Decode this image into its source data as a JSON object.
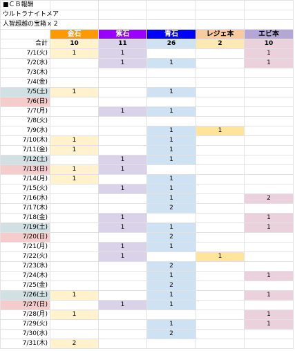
{
  "header": {
    "lines": [
      "■ＣＢ報酬",
      "ウルトラナイトメア",
      "人智超越の宝箱ｘ２"
    ]
  },
  "table": {
    "columns": [
      "金石",
      "紫石",
      "青石",
      "レジェ本",
      "エビ本"
    ],
    "total_label": "合計",
    "totals": [
      10,
      11,
      26,
      2,
      10
    ],
    "rows": [
      {
        "date": "7/1(火)",
        "values": [
          1,
          1,
          null,
          null,
          1
        ]
      },
      {
        "date": "7/2(水)",
        "values": [
          null,
          1,
          1,
          null,
          1
        ]
      },
      {
        "date": "7/3(木)",
        "values": [
          null,
          null,
          null,
          null,
          null
        ]
      },
      {
        "date": "7/4(金)",
        "values": [
          null,
          null,
          null,
          null,
          null
        ]
      },
      {
        "date": "7/5(土)",
        "values": [
          1,
          null,
          1,
          null,
          null
        ]
      },
      {
        "date": "7/6(日)",
        "values": [
          null,
          null,
          null,
          null,
          null
        ]
      },
      {
        "date": "7/7(月)",
        "values": [
          null,
          1,
          1,
          null,
          null
        ]
      },
      {
        "date": "7/8(火)",
        "values": [
          null,
          null,
          null,
          null,
          null
        ]
      },
      {
        "date": "7/9(水)",
        "values": [
          null,
          null,
          1,
          1,
          null
        ]
      },
      {
        "date": "7/10(木)",
        "values": [
          1,
          null,
          1,
          null,
          null
        ]
      },
      {
        "date": "7/11(金)",
        "values": [
          1,
          null,
          1,
          null,
          null
        ]
      },
      {
        "date": "7/12(土)",
        "values": [
          null,
          1,
          1,
          null,
          null
        ]
      },
      {
        "date": "7/13(日)",
        "values": [
          1,
          1,
          null,
          null,
          null
        ]
      },
      {
        "date": "7/14(月)",
        "values": [
          1,
          null,
          1,
          null,
          null
        ]
      },
      {
        "date": "7/15(火)",
        "values": [
          null,
          1,
          1,
          null,
          null
        ]
      },
      {
        "date": "7/16(水)",
        "values": [
          null,
          null,
          1,
          null,
          2
        ]
      },
      {
        "date": "7/17(木)",
        "values": [
          null,
          null,
          2,
          null,
          null
        ]
      },
      {
        "date": "7/18(金)",
        "values": [
          null,
          1,
          null,
          null,
          1
        ]
      },
      {
        "date": "7/19(土)",
        "values": [
          null,
          1,
          1,
          null,
          1
        ]
      },
      {
        "date": "7/20(日)",
        "values": [
          null,
          null,
          2,
          null,
          null
        ]
      },
      {
        "date": "7/21(月)",
        "values": [
          null,
          1,
          1,
          null,
          null
        ]
      },
      {
        "date": "7/22(火)",
        "values": [
          null,
          1,
          null,
          1,
          null
        ]
      },
      {
        "date": "7/23(水)",
        "values": [
          null,
          null,
          2,
          null,
          null
        ]
      },
      {
        "date": "7/24(木)",
        "values": [
          null,
          null,
          1,
          null,
          1
        ]
      },
      {
        "date": "7/25(金)",
        "values": [
          null,
          null,
          2,
          null,
          null
        ]
      },
      {
        "date": "7/26(土)",
        "values": [
          1,
          null,
          1,
          null,
          1
        ]
      },
      {
        "date": "7/27(日)",
        "values": [
          null,
          1,
          1,
          null,
          null
        ]
      },
      {
        "date": "7/28(月)",
        "values": [
          1,
          null,
          null,
          null,
          1
        ]
      },
      {
        "date": "7/29(火)",
        "values": [
          null,
          null,
          1,
          null,
          1
        ]
      },
      {
        "date": "7/30(水)",
        "values": [
          null,
          null,
          2,
          null,
          null
        ]
      },
      {
        "date": "7/31(木)",
        "values": [
          2,
          null,
          null,
          null,
          null
        ]
      }
    ]
  }
}
